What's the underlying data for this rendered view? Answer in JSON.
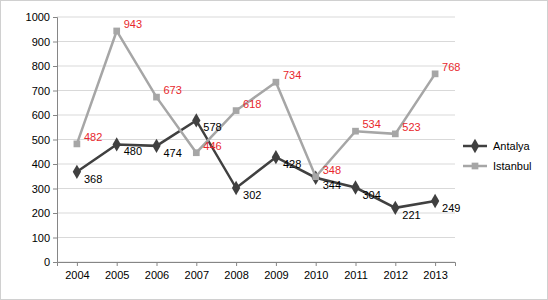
{
  "chart_data": {
    "type": "line",
    "categories": [
      "2004",
      "2005",
      "2006",
      "2007",
      "2008",
      "2009",
      "2010",
      "2011",
      "2012",
      "2013"
    ],
    "series": [
      {
        "name": "Antalya",
        "color": "#404040",
        "marker": "diamond",
        "values": [
          368,
          480,
          474,
          578,
          302,
          428,
          344,
          304,
          221,
          249
        ]
      },
      {
        "name": "Istanbul",
        "color": "#a6a6a6",
        "marker": "square",
        "values": [
          482,
          943,
          673,
          446,
          618,
          734,
          348,
          534,
          523,
          768
        ]
      }
    ],
    "ylim": [
      0,
      1000
    ],
    "yticks": [
      0,
      100,
      200,
      300,
      400,
      500,
      600,
      700,
      800,
      900,
      1000
    ],
    "grid": true,
    "legend": "right",
    "data_labels": true
  }
}
